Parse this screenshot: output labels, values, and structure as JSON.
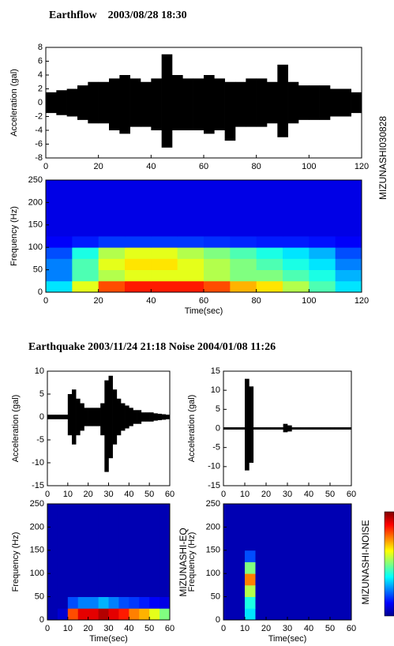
{
  "chart_data": [
    {
      "type": "waveform",
      "title": "Earthflow    2003/08/28 18:30",
      "ylabel": "Acceleration (gal)",
      "xlim": [
        0,
        120
      ],
      "xticks": [
        0,
        20,
        40,
        60,
        80,
        100,
        120
      ],
      "ylim": [
        -8,
        8
      ],
      "yticks": [
        -8,
        -6,
        -4,
        -2,
        0,
        2,
        4,
        6,
        8
      ],
      "color": "#000000",
      "upper": [
        1.5,
        1.8,
        2,
        2.5,
        3,
        3,
        3.5,
        4,
        3.5,
        3,
        3.5,
        7,
        4,
        3.5,
        3.5,
        4,
        3.5,
        3,
        3,
        3.5,
        3.5,
        3,
        5.5,
        3,
        2.5,
        2.5,
        2.5,
        2,
        2,
        1.5
      ],
      "lower": [
        -1.5,
        -1.8,
        -2,
        -2.5,
        -3,
        -3,
        -4,
        -4.5,
        -3.5,
        -3.5,
        -4,
        -6.5,
        -4,
        -4,
        -4,
        -4.5,
        -4,
        -5.5,
        -3.5,
        -3.5,
        -3.5,
        -3,
        -5,
        -3,
        -2.5,
        -2.5,
        -2.5,
        -2,
        -2,
        -1.5
      ]
    },
    {
      "type": "heatmap",
      "xlabel": "Time(sec)",
      "ylabel": "Frequency (Hz)",
      "annotation": "MIZUNASHI030828",
      "xlim": [
        0,
        120
      ],
      "xticks": [
        0,
        20,
        40,
        60,
        80,
        100,
        120
      ],
      "ylim": [
        0,
        250
      ],
      "yticks": [
        0,
        50,
        100,
        150,
        200,
        250
      ],
      "z": [
        [
          0.35,
          0.6,
          0.8,
          0.85,
          0.85,
          0.85,
          0.8,
          0.7,
          0.65,
          0.55,
          0.45,
          0.35
        ],
        [
          0.25,
          0.45,
          0.55,
          0.6,
          0.6,
          0.6,
          0.55,
          0.5,
          0.5,
          0.45,
          0.4,
          0.3
        ],
        [
          0.25,
          0.45,
          0.6,
          0.65,
          0.65,
          0.6,
          0.55,
          0.5,
          0.45,
          0.4,
          0.35,
          0.25
        ],
        [
          0.2,
          0.4,
          0.55,
          0.6,
          0.6,
          0.55,
          0.5,
          0.45,
          0.4,
          0.35,
          0.3,
          0.2
        ],
        [
          0.12,
          0.15,
          0.18,
          0.18,
          0.18,
          0.18,
          0.17,
          0.16,
          0.15,
          0.15,
          0.14,
          0.12
        ],
        [
          0.1,
          0.1,
          0.1,
          0.1,
          0.1,
          0.1,
          0.1,
          0.1,
          0.1,
          0.1,
          0.1,
          0.1
        ],
        [
          0.1,
          0.1,
          0.1,
          0.1,
          0.1,
          0.1,
          0.1,
          0.1,
          0.1,
          0.1,
          0.1,
          0.1
        ],
        [
          0.1,
          0.1,
          0.1,
          0.1,
          0.1,
          0.1,
          0.1,
          0.1,
          0.1,
          0.1,
          0.1,
          0.1
        ],
        [
          0.1,
          0.1,
          0.1,
          0.1,
          0.1,
          0.1,
          0.1,
          0.1,
          0.1,
          0.1,
          0.1,
          0.1
        ],
        [
          0.1,
          0.1,
          0.1,
          0.1,
          0.1,
          0.1,
          0.1,
          0.1,
          0.1,
          0.1,
          0.1,
          0.1
        ]
      ]
    },
    {
      "type": "waveform",
      "title": "Earthquake 2003/11/24 21:18 Noise 2004/01/08 11:26",
      "ylabel": "Acceleration (gal)",
      "xlim": [
        0,
        60
      ],
      "xticks": [
        0,
        10,
        20,
        30,
        40,
        50,
        60
      ],
      "ylim": [
        -15,
        10
      ],
      "yticks": [
        -15,
        -10,
        -5,
        0,
        5,
        10
      ],
      "color": "#000000",
      "upper": [
        0.5,
        0.5,
        0.5,
        0.5,
        0.5,
        5,
        6,
        4,
        3,
        2,
        2,
        2,
        2,
        3,
        8,
        9,
        6,
        4,
        3,
        2.5,
        2,
        1.5,
        1.5,
        1,
        1,
        1,
        0.8,
        0.7,
        0.6,
        0.5
      ],
      "lower": [
        -0.5,
        -0.5,
        -0.5,
        -0.5,
        -0.5,
        -4,
        -6,
        -4,
        -3,
        -2,
        -2,
        -2,
        -2,
        -4,
        -12,
        -9,
        -6,
        -4,
        -3,
        -2.5,
        -2,
        -1.5,
        -1.5,
        -1,
        -1,
        -1,
        -0.8,
        -0.7,
        -0.6,
        -0.5
      ]
    },
    {
      "type": "heatmap",
      "xlabel": "Time(sec)",
      "ylabel": "Frequency (Hz)",
      "annotation": "MIZUNASHI-EQ",
      "xlim": [
        0,
        60
      ],
      "xticks": [
        0,
        10,
        20,
        30,
        40,
        50,
        60
      ],
      "ylim": [
        0,
        250
      ],
      "yticks": [
        0,
        50,
        100,
        150,
        200,
        250
      ],
      "z": [
        [
          0.05,
          0.08,
          0.8,
          0.9,
          0.9,
          0.95,
          0.9,
          0.85,
          0.75,
          0.7,
          0.6,
          0.5
        ],
        [
          0.05,
          0.05,
          0.2,
          0.25,
          0.25,
          0.3,
          0.25,
          0.2,
          0.18,
          0.15,
          0.12,
          0.1
        ],
        [
          0.05,
          0.05,
          0.05,
          0.05,
          0.05,
          0.05,
          0.05,
          0.05,
          0.05,
          0.05,
          0.05,
          0.05
        ],
        [
          0.05,
          0.05,
          0.05,
          0.05,
          0.05,
          0.05,
          0.05,
          0.05,
          0.05,
          0.05,
          0.05,
          0.05
        ],
        [
          0.05,
          0.05,
          0.05,
          0.05,
          0.05,
          0.05,
          0.05,
          0.05,
          0.05,
          0.05,
          0.05,
          0.05
        ],
        [
          0.05,
          0.05,
          0.05,
          0.05,
          0.05,
          0.05,
          0.05,
          0.05,
          0.05,
          0.05,
          0.05,
          0.05
        ],
        [
          0.05,
          0.05,
          0.05,
          0.05,
          0.05,
          0.05,
          0.05,
          0.05,
          0.05,
          0.05,
          0.05,
          0.05
        ],
        [
          0.05,
          0.05,
          0.05,
          0.05,
          0.05,
          0.05,
          0.05,
          0.05,
          0.05,
          0.05,
          0.05,
          0.05
        ],
        [
          0.05,
          0.05,
          0.05,
          0.05,
          0.05,
          0.05,
          0.05,
          0.05,
          0.05,
          0.05,
          0.05,
          0.05
        ],
        [
          0.05,
          0.05,
          0.05,
          0.05,
          0.05,
          0.05,
          0.05,
          0.05,
          0.05,
          0.05,
          0.05,
          0.05
        ]
      ]
    },
    {
      "type": "waveform",
      "ylabel": "Acceleration (gal)",
      "xlim": [
        0,
        60
      ],
      "xticks": [
        0,
        10,
        20,
        30,
        40,
        50,
        60
      ],
      "ylim": [
        -15,
        15
      ],
      "yticks": [
        -15,
        -10,
        -5,
        0,
        5,
        10,
        15
      ],
      "color": "#000000",
      "upper": [
        0.3,
        0.3,
        0.3,
        0.3,
        0.3,
        13,
        11,
        0.3,
        0.3,
        0.3,
        0.3,
        0.3,
        0.3,
        0.3,
        1.2,
        0.8,
        0.3,
        0.3,
        0.3,
        0.3,
        0.3,
        0.3,
        0.3,
        0.3,
        0.3,
        0.3,
        0.3,
        0.3,
        0.3,
        0.3
      ],
      "lower": [
        -0.3,
        -0.3,
        -0.3,
        -0.3,
        -0.3,
        -11,
        -9,
        -0.3,
        -0.3,
        -0.3,
        -0.3,
        -0.3,
        -0.3,
        -0.3,
        -1,
        -0.8,
        -0.3,
        -0.3,
        -0.3,
        -0.3,
        -0.3,
        -0.3,
        -0.3,
        -0.3,
        -0.3,
        -0.3,
        -0.3,
        -0.3,
        -0.3,
        -0.3
      ]
    },
    {
      "type": "heatmap",
      "xlabel": "Time(sec)",
      "ylabel": "Frequency (Hz)",
      "annotation": "MIZUNASHI-NOISE",
      "xlim": [
        0,
        60
      ],
      "xticks": [
        0,
        10,
        20,
        30,
        40,
        50,
        60
      ],
      "ylim": [
        0,
        250
      ],
      "yticks": [
        0,
        50,
        100,
        150,
        200,
        250
      ],
      "z": [
        [
          0.05,
          0.05,
          0.35,
          0.05,
          0.05,
          0.05,
          0.05,
          0.05,
          0.05,
          0.05,
          0.05,
          0.05
        ],
        [
          0.05,
          0.05,
          0.4,
          0.05,
          0.05,
          0.05,
          0.05,
          0.05,
          0.05,
          0.05,
          0.05,
          0.05
        ],
        [
          0.05,
          0.05,
          0.55,
          0.05,
          0.05,
          0.05,
          0.05,
          0.05,
          0.05,
          0.05,
          0.05,
          0.05
        ],
        [
          0.05,
          0.05,
          0.75,
          0.05,
          0.05,
          0.05,
          0.05,
          0.05,
          0.05,
          0.05,
          0.05,
          0.05
        ],
        [
          0.05,
          0.05,
          0.5,
          0.05,
          0.05,
          0.05,
          0.05,
          0.05,
          0.05,
          0.05,
          0.05,
          0.05
        ],
        [
          0.05,
          0.05,
          0.2,
          0.05,
          0.05,
          0.05,
          0.05,
          0.05,
          0.05,
          0.05,
          0.05,
          0.05
        ],
        [
          0.05,
          0.05,
          0.05,
          0.05,
          0.05,
          0.05,
          0.05,
          0.05,
          0.05,
          0.05,
          0.05,
          0.05
        ],
        [
          0.05,
          0.05,
          0.05,
          0.05,
          0.05,
          0.05,
          0.05,
          0.05,
          0.05,
          0.05,
          0.05,
          0.05
        ],
        [
          0.05,
          0.05,
          0.05,
          0.05,
          0.05,
          0.05,
          0.05,
          0.05,
          0.05,
          0.05,
          0.05,
          0.05
        ],
        [
          0.05,
          0.05,
          0.05,
          0.05,
          0.05,
          0.05,
          0.05,
          0.05,
          0.05,
          0.05,
          0.05,
          0.05
        ]
      ]
    }
  ]
}
